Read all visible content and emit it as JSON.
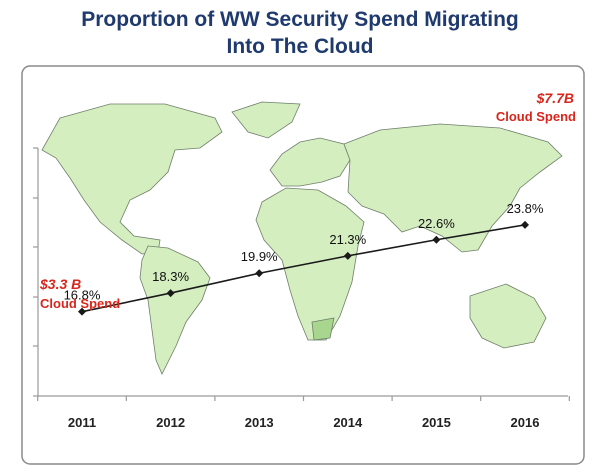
{
  "chart_data": {
    "type": "line",
    "title": [
      "Proportion of WW Security Spend Migrating",
      "Into The Cloud"
    ],
    "categories": [
      "2011",
      "2012",
      "2013",
      "2014",
      "2015",
      "2016"
    ],
    "series": [
      {
        "values": [
          16.8,
          18.3,
          19.9,
          21.3,
          22.6,
          23.8
        ],
        "data_labels": [
          "16.8%",
          "18.3%",
          "19.9%",
          "21.3%",
          "22.6%",
          "23.8%"
        ]
      }
    ],
    "ylim": [
      10,
      30
    ],
    "grid": false,
    "background": "world map",
    "annotations": [
      {
        "value": "$3.3 B",
        "text": "Cloud Spend",
        "anchor": "2011"
      },
      {
        "value": "$7.7B",
        "text": "Cloud Spend",
        "anchor": "2016"
      }
    ],
    "colors": {
      "title": "#1f3a6e",
      "line": "#1a1a1a",
      "annotation": "#d8261c",
      "map_land": "#d4eec0",
      "map_border": "#6f7f6a",
      "panel_border": "#8a8a8a"
    }
  }
}
